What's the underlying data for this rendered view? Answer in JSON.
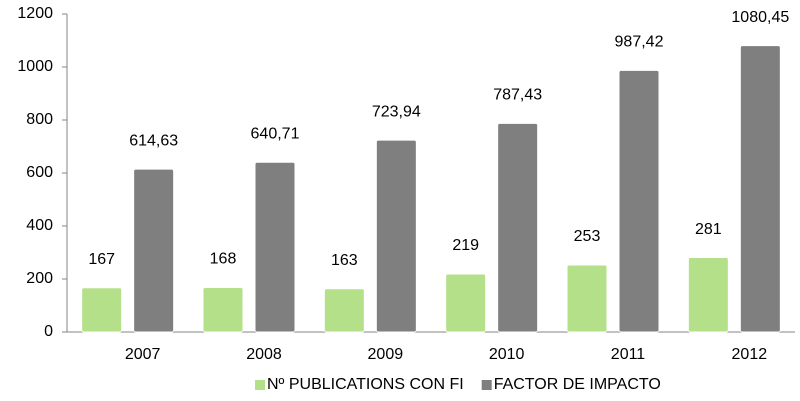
{
  "chart_data": {
    "type": "bar",
    "categories": [
      "2007",
      "2008",
      "2009",
      "2010",
      "2011",
      "2012"
    ],
    "series": [
      {
        "name": "Nº PUBLICATIONS CON FI",
        "color": "#b5e08a",
        "values": [
          167,
          168,
          163,
          219,
          253,
          281
        ]
      },
      {
        "name": "FACTOR DE IMPACTO",
        "color": "#7f7f7f",
        "values": [
          614.63,
          640.71,
          723.94,
          787.43,
          987.42,
          1080.45
        ],
        "value_labels": [
          "614,63",
          "640,71",
          "723,94",
          "787,43",
          "987,42",
          "1080,45"
        ]
      }
    ],
    "ylim": [
      0,
      1200
    ],
    "yticks": [
      0,
      200,
      400,
      600,
      800,
      1000,
      1200
    ],
    "grid": false,
    "legend": "bottom"
  }
}
